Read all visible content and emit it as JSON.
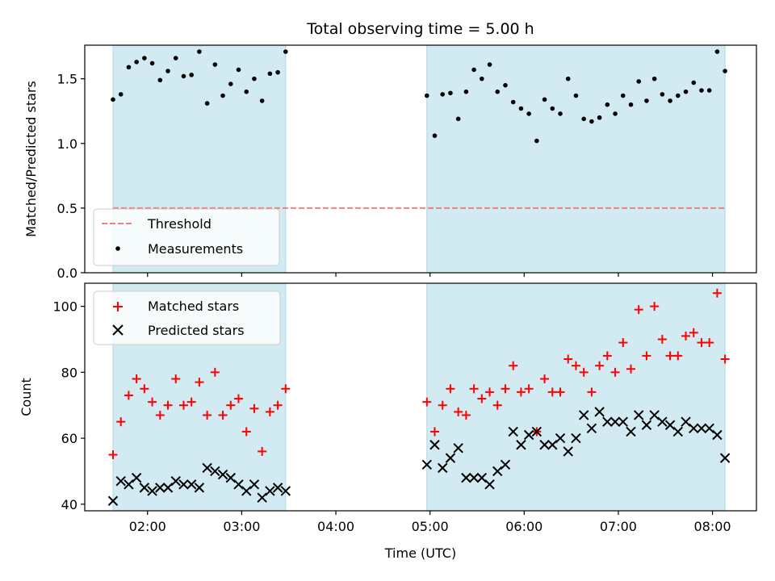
{
  "chart_data": [
    {
      "type": "scatter",
      "title": "Total observing time = 5.00 h",
      "ylabel": "Matched/Predicted stars",
      "xlim": [
        "01:20",
        "08:28"
      ],
      "ylim": [
        0,
        1.76
      ],
      "yticks": [
        0.0,
        0.5,
        1.0,
        1.5
      ],
      "ytick_labels": [
        "0.0",
        "0.5",
        "1.0",
        "1.5"
      ],
      "xtick_positions": [
        "02:00",
        "03:00",
        "04:00",
        "05:00",
        "06:00",
        "07:00",
        "08:00"
      ],
      "observing_windows": [
        [
          "01:38",
          "03:28"
        ],
        [
          "04:58",
          "08:08"
        ]
      ],
      "window_color": "#add8e6",
      "threshold": {
        "name": "Threshold",
        "value": 0.5,
        "x_range": [
          "01:38",
          "08:08"
        ],
        "color": "#f08080",
        "style": "dashed"
      },
      "legend": {
        "location": "lower left",
        "entries": [
          "Threshold",
          "Measurements"
        ]
      },
      "series": [
        {
          "name": "Measurements",
          "color": "#000000",
          "marker": "dot",
          "x": [
            "01:38",
            "01:43",
            "01:48",
            "01:53",
            "01:58",
            "02:03",
            "02:08",
            "02:13",
            "02:18",
            "02:23",
            "02:28",
            "02:33",
            "02:38",
            "02:43",
            "02:48",
            "02:53",
            "02:58",
            "03:03",
            "03:08",
            "03:13",
            "03:18",
            "03:23",
            "03:28",
            "04:58",
            "05:03",
            "05:08",
            "05:13",
            "05:18",
            "05:23",
            "05:28",
            "05:33",
            "05:38",
            "05:43",
            "05:48",
            "05:53",
            "05:58",
            "06:03",
            "06:08",
            "06:13",
            "06:18",
            "06:23",
            "06:28",
            "06:33",
            "06:38",
            "06:43",
            "06:48",
            "06:53",
            "06:58",
            "07:03",
            "07:08",
            "07:13",
            "07:18",
            "07:23",
            "07:28",
            "07:33",
            "07:38",
            "07:43",
            "07:48",
            "07:53",
            "07:58",
            "08:03",
            "08:08"
          ],
          "y": [
            1.34,
            1.38,
            1.59,
            1.63,
            1.66,
            1.62,
            1.49,
            1.56,
            1.66,
            1.52,
            1.53,
            1.71,
            1.31,
            1.61,
            1.37,
            1.46,
            1.57,
            1.4,
            1.5,
            1.33,
            1.54,
            1.55,
            1.71,
            1.37,
            1.06,
            1.38,
            1.39,
            1.19,
            1.4,
            1.57,
            1.5,
            1.61,
            1.4,
            1.45,
            1.32,
            1.27,
            1.23,
            1.02,
            1.34,
            1.27,
            1.23,
            1.5,
            1.37,
            1.19,
            1.17,
            1.2,
            1.3,
            1.23,
            1.37,
            1.3,
            1.48,
            1.33,
            1.5,
            1.38,
            1.33,
            1.37,
            1.4,
            1.47,
            1.41,
            1.41,
            1.71,
            1.56
          ]
        }
      ]
    },
    {
      "type": "scatter",
      "xlabel": "Time (UTC)",
      "ylabel": "Count",
      "xlim": [
        "01:20",
        "08:28"
      ],
      "ylim": [
        38,
        107
      ],
      "yticks": [
        40,
        60,
        80,
        100
      ],
      "ytick_labels": [
        "40",
        "60",
        "80",
        "100"
      ],
      "xticks": [
        "02:00",
        "03:00",
        "04:00",
        "05:00",
        "06:00",
        "07:00",
        "08:00"
      ],
      "xtick_labels": [
        "02:00",
        "03:00",
        "04:00",
        "05:00",
        "06:00",
        "07:00",
        "08:00"
      ],
      "observing_windows": [
        [
          "01:38",
          "03:28"
        ],
        [
          "04:58",
          "08:08"
        ]
      ],
      "window_color": "#add8e6",
      "legend": {
        "location": "upper left",
        "entries": [
          "Matched stars",
          "Predicted stars"
        ]
      },
      "series": [
        {
          "name": "Matched stars",
          "color": "#ff0000",
          "marker": "plus",
          "x": [
            "01:38",
            "01:43",
            "01:48",
            "01:53",
            "01:58",
            "02:03",
            "02:08",
            "02:13",
            "02:18",
            "02:23",
            "02:28",
            "02:33",
            "02:38",
            "02:43",
            "02:48",
            "02:53",
            "02:58",
            "03:03",
            "03:08",
            "03:13",
            "03:18",
            "03:23",
            "03:28",
            "04:58",
            "05:03",
            "05:08",
            "05:13",
            "05:18",
            "05:23",
            "05:28",
            "05:33",
            "05:38",
            "05:43",
            "05:48",
            "05:53",
            "05:58",
            "06:03",
            "06:08",
            "06:13",
            "06:18",
            "06:23",
            "06:28",
            "06:33",
            "06:38",
            "06:43",
            "06:48",
            "06:53",
            "06:58",
            "07:03",
            "07:08",
            "07:13",
            "07:18",
            "07:23",
            "07:28",
            "07:33",
            "07:38",
            "07:43",
            "07:48",
            "07:53",
            "07:58",
            "08:03",
            "08:08"
          ],
          "y": [
            55,
            65,
            73,
            78,
            75,
            71,
            67,
            70,
            78,
            70,
            71,
            77,
            67,
            80,
            67,
            70,
            72,
            62,
            69,
            56,
            68,
            70,
            75,
            71,
            62,
            70,
            75,
            68,
            67,
            75,
            72,
            74,
            70,
            75,
            82,
            74,
            75,
            62,
            78,
            74,
            74,
            84,
            82,
            80,
            74,
            82,
            85,
            80,
            89,
            81,
            99,
            85,
            100,
            90,
            85,
            85,
            91,
            92,
            89,
            89,
            104,
            84
          ]
        },
        {
          "name": "Predicted stars",
          "color": "#000000",
          "marker": "x",
          "x": [
            "01:38",
            "01:43",
            "01:48",
            "01:53",
            "01:58",
            "02:03",
            "02:08",
            "02:13",
            "02:18",
            "02:23",
            "02:28",
            "02:33",
            "02:38",
            "02:43",
            "02:48",
            "02:53",
            "02:58",
            "03:03",
            "03:08",
            "03:13",
            "03:18",
            "03:23",
            "03:28",
            "04:58",
            "05:03",
            "05:08",
            "05:13",
            "05:18",
            "05:23",
            "05:28",
            "05:33",
            "05:38",
            "05:43",
            "05:48",
            "05:53",
            "05:58",
            "06:03",
            "06:08",
            "06:13",
            "06:18",
            "06:23",
            "06:28",
            "06:33",
            "06:38",
            "06:43",
            "06:48",
            "06:53",
            "06:58",
            "07:03",
            "07:08",
            "07:13",
            "07:18",
            "07:23",
            "07:28",
            "07:33",
            "07:38",
            "07:43",
            "07:48",
            "07:53",
            "07:58",
            "08:03",
            "08:08"
          ],
          "y": [
            41,
            47,
            46,
            48,
            45,
            44,
            45,
            45,
            47,
            46,
            46,
            45,
            51,
            50,
            49,
            48,
            46,
            44,
            46,
            42,
            44,
            45,
            44,
            52,
            58,
            51,
            54,
            57,
            48,
            48,
            48,
            46,
            50,
            52,
            62,
            58,
            61,
            62,
            58,
            58,
            60,
            56,
            60,
            67,
            63,
            68,
            65,
            65,
            65,
            62,
            67,
            64,
            67,
            65,
            64,
            62,
            65,
            63,
            63,
            63,
            61,
            54
          ]
        }
      ]
    }
  ]
}
